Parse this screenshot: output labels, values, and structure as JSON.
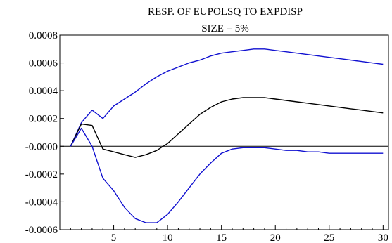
{
  "chart_data": {
    "type": "line",
    "title": "RESP. OF EUPOLSQ TO EXPDISP",
    "subtitle": "SIZE = 5%",
    "xlabel": "",
    "ylabel": "",
    "xlim": [
      0,
      30.5
    ],
    "ylim": [
      -0.0006,
      0.0008
    ],
    "x_ticks": [
      5,
      10,
      15,
      20,
      25,
      30
    ],
    "y_ticks": [
      {
        "value": 0.0008,
        "label": "0.0008"
      },
      {
        "value": 0.0006,
        "label": "0.0006"
      },
      {
        "value": 0.0004,
        "label": "0.0004"
      },
      {
        "value": 0.0002,
        "label": "0.0002"
      },
      {
        "value": 0.0,
        "label": "-0.0000"
      },
      {
        "value": -0.0002,
        "label": "-0.0002"
      },
      {
        "value": -0.0004,
        "label": "-0.0004"
      },
      {
        "value": -0.0006,
        "label": "-0.0006"
      }
    ],
    "zero_line": true,
    "grid": false,
    "series": [
      {
        "role": "upper",
        "color": "#1010d0",
        "x": [
          1,
          2,
          3,
          4,
          5,
          6,
          7,
          8,
          9,
          10,
          11,
          12,
          13,
          14,
          15,
          16,
          17,
          18,
          19,
          20,
          21,
          22,
          23,
          24,
          25,
          26,
          27,
          28,
          29,
          30
        ],
        "values": [
          0.0,
          0.00017,
          0.00026,
          0.0002,
          0.00029,
          0.00034,
          0.00039,
          0.00045,
          0.0005,
          0.00054,
          0.00057,
          0.0006,
          0.00062,
          0.00065,
          0.00067,
          0.00068,
          0.00069,
          0.0007,
          0.0007,
          0.00069,
          0.00068,
          0.00067,
          0.00066,
          0.00065,
          0.00064,
          0.00063,
          0.00062,
          0.00061,
          0.0006,
          0.00059
        ]
      },
      {
        "role": "response",
        "color": "#000000",
        "x": [
          1,
          2,
          3,
          4,
          5,
          6,
          7,
          8,
          9,
          10,
          11,
          12,
          13,
          14,
          15,
          16,
          17,
          18,
          19,
          20,
          21,
          22,
          23,
          24,
          25,
          26,
          27,
          28,
          29,
          30
        ],
        "values": [
          0.0,
          0.00016,
          0.00015,
          -2e-05,
          -4e-05,
          -6e-05,
          -8e-05,
          -6e-05,
          -3e-05,
          2e-05,
          9e-05,
          0.00016,
          0.00023,
          0.00028,
          0.00032,
          0.00034,
          0.00035,
          0.00035,
          0.00035,
          0.00034,
          0.00033,
          0.00032,
          0.00031,
          0.0003,
          0.00029,
          0.00028,
          0.00027,
          0.00026,
          0.00025,
          0.00024
        ]
      },
      {
        "role": "lower",
        "color": "#1010d0",
        "x": [
          1,
          2,
          3,
          4,
          5,
          6,
          7,
          8,
          9,
          10,
          11,
          12,
          13,
          14,
          15,
          16,
          17,
          18,
          19,
          20,
          21,
          22,
          23,
          24,
          25,
          26,
          27,
          28,
          29,
          30
        ],
        "values": [
          0.0,
          0.00013,
          0.0,
          -0.00023,
          -0.00032,
          -0.00044,
          -0.00052,
          -0.00055,
          -0.00055,
          -0.00049,
          -0.0004,
          -0.0003,
          -0.0002,
          -0.00012,
          -5e-05,
          -2e-05,
          -1e-05,
          -1e-05,
          -1e-05,
          -2e-05,
          -3e-05,
          -3e-05,
          -4e-05,
          -4e-05,
          -5e-05,
          -5e-05,
          -5e-05,
          -5e-05,
          -5e-05,
          -5e-05
        ]
      }
    ]
  }
}
